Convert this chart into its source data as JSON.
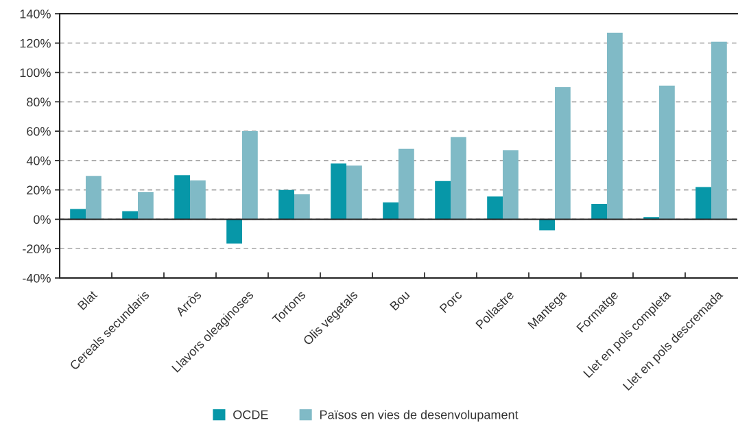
{
  "chart_data": {
    "type": "bar",
    "categories": [
      "Blat",
      "Cereals secundaris",
      "Arròs",
      "Llavors oleaginoses",
      "Tortons",
      "Olis vegetals",
      "Bou",
      "Porc",
      "Pollastre",
      "Mantega",
      "Formatge",
      "Llet en pols completa",
      "Llet en pols descremada"
    ],
    "series": [
      {
        "name": "OCDE",
        "color": "#0797a8",
        "values": [
          7,
          5.5,
          30,
          -16.5,
          20,
          38,
          11.5,
          26,
          15.5,
          -7.5,
          10.5,
          1.5,
          22
        ]
      },
      {
        "name": "Països en vies de desenvolupament",
        "color": "#80bac6",
        "values": [
          29.5,
          18.5,
          26.5,
          60,
          17,
          36.5,
          48,
          56,
          47,
          90,
          127,
          91,
          121
        ]
      }
    ],
    "ylim": [
      -40,
      140
    ],
    "yticks": [
      {
        "value": -40,
        "label": "-40%"
      },
      {
        "value": -20,
        "label": "-20%"
      },
      {
        "value": 0,
        "label": "0%"
      },
      {
        "value": 20,
        "label": "20%"
      },
      {
        "value": 40,
        "label": "40%"
      },
      {
        "value": 60,
        "label": "60%"
      },
      {
        "value": 80,
        "label": "80%"
      },
      {
        "value": 100,
        "label": "100%"
      },
      {
        "value": 120,
        "label": "120%"
      },
      {
        "value": 140,
        "label": "140%"
      }
    ],
    "grid": "y",
    "legend": "bottom"
  }
}
